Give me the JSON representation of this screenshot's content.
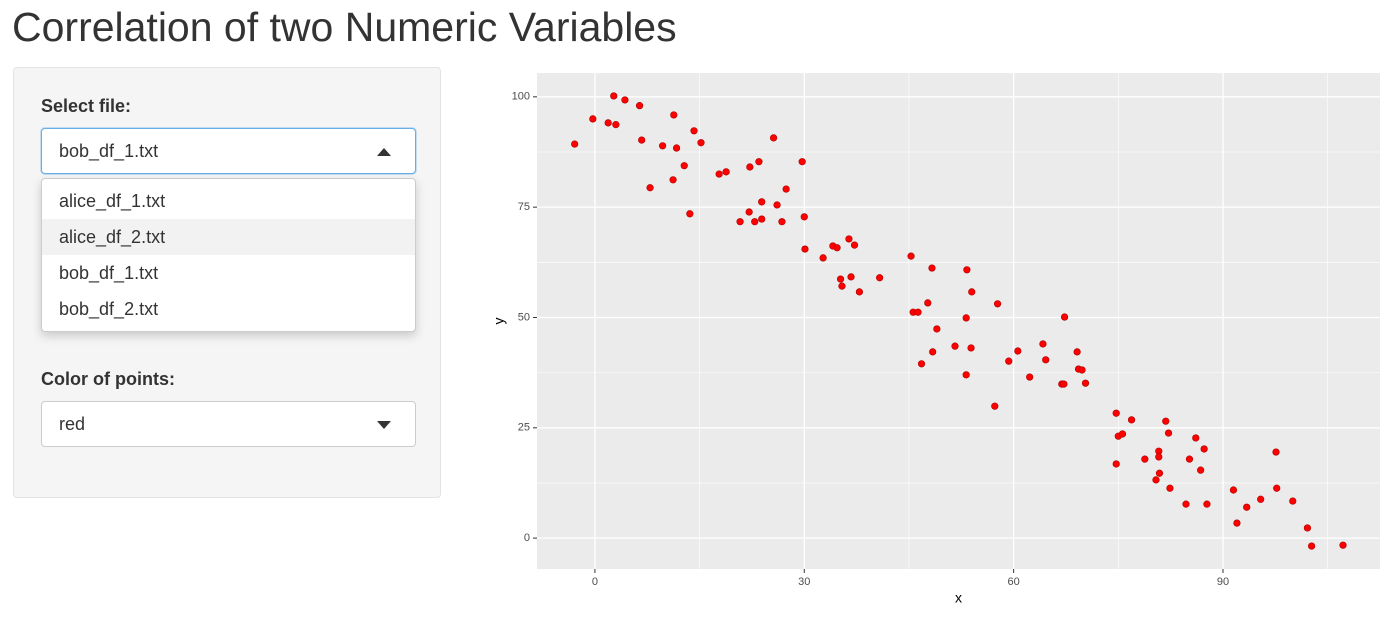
{
  "header": {
    "title": "Correlation of two Numeric Variables"
  },
  "sidebar": {
    "file_label": "Select file:",
    "file_selected": "bob_df_1.txt",
    "file_options": [
      "alice_df_1.txt",
      "alice_df_2.txt",
      "bob_df_1.txt",
      "bob_df_2.txt"
    ],
    "color_label": "Color of points:",
    "color_selected": "red"
  },
  "chart_data": {
    "type": "scatter",
    "x": [
      -2.9,
      -0.3,
      1.9,
      2.7,
      3.0,
      4.3,
      6.4,
      6.7,
      7.9,
      9.7,
      11.3,
      11.2,
      11.7,
      12.8,
      13.6,
      14.2,
      15.2,
      17.8,
      18.8,
      20.8,
      22.1,
      22.2,
      22.9,
      23.5,
      23.9,
      23.9,
      25.6,
      26.1,
      26.8,
      27.4,
      29.7,
      30.0,
      30.1,
      32.7,
      34.1,
      34.7,
      35.2,
      35.4,
      36.4,
      36.7,
      37.2,
      37.9,
      40.8,
      45.3,
      45.6,
      46.3,
      46.8,
      47.7,
      48.3,
      48.4,
      49.0,
      51.6,
      53.2,
      53.2,
      53.3,
      53.9,
      54.0,
      57.3,
      57.7,
      59.3,
      60.6,
      62.3,
      64.2,
      64.6,
      66.9,
      67.2,
      67.3,
      69.1,
      69.3,
      69.8,
      70.3,
      74.7,
      74.7,
      75.0,
      75.6,
      76.9,
      78.8,
      80.4,
      80.8,
      80.8,
      80.9,
      81.8,
      82.2,
      82.4,
      84.7,
      85.2,
      86.1,
      86.8,
      87.3,
      87.7,
      91.5,
      92.0,
      93.4,
      95.4,
      97.6,
      97.7,
      100.0,
      102.1,
      102.7,
      107.2
    ],
    "y": [
      89.3,
      95.0,
      94.1,
      100.2,
      93.7,
      99.3,
      98.0,
      90.2,
      79.4,
      88.9,
      95.9,
      81.2,
      88.4,
      84.4,
      73.5,
      92.3,
      89.6,
      82.5,
      83.0,
      71.7,
      73.9,
      84.1,
      71.7,
      85.3,
      76.2,
      72.3,
      90.7,
      75.5,
      71.7,
      79.1,
      85.3,
      72.8,
      65.5,
      63.5,
      66.2,
      65.8,
      58.7,
      57.1,
      67.8,
      59.2,
      66.4,
      55.8,
      59.0,
      63.9,
      51.2,
      51.2,
      39.5,
      53.3,
      61.2,
      42.2,
      47.4,
      43.5,
      49.9,
      37.0,
      60.8,
      43.1,
      55.8,
      29.9,
      53.1,
      40.1,
      42.4,
      36.5,
      44.0,
      40.4,
      34.9,
      34.9,
      50.1,
      42.2,
      38.3,
      38.1,
      35.1,
      28.3,
      16.8,
      23.1,
      23.6,
      26.8,
      17.9,
      13.2,
      19.7,
      18.4,
      14.7,
      26.5,
      23.8,
      11.3,
      7.7,
      17.9,
      22.7,
      15.4,
      20.2,
      7.7,
      10.9,
      3.4,
      7.0,
      8.8,
      19.5,
      11.3,
      8.4,
      2.3,
      -1.8,
      -1.6
    ],
    "color": "red",
    "xlabel": "x",
    "ylabel": "y",
    "xlim": [
      -8.3,
      112.5
    ],
    "ylim": [
      -7.0,
      105.4
    ],
    "xticks": [
      0,
      30,
      60,
      90
    ],
    "yticks": [
      0,
      25,
      50,
      75,
      100
    ],
    "xminor": [
      15,
      45,
      75,
      105
    ],
    "yminor": [
      12.5,
      37.5,
      62.5,
      87.5
    ],
    "grid": true
  }
}
